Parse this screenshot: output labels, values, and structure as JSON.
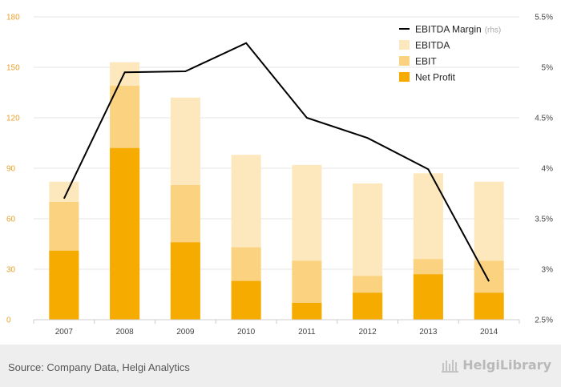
{
  "chart_data": {
    "type": "bar",
    "categories": [
      "2007",
      "2008",
      "2009",
      "2010",
      "2011",
      "2012",
      "2013",
      "2014"
    ],
    "series": [
      {
        "name": "EBITDA",
        "type": "bar",
        "color": "#fde8bd",
        "values": [
          82,
          153,
          132,
          98,
          92,
          81,
          87,
          82
        ]
      },
      {
        "name": "EBIT",
        "type": "bar",
        "color": "#fbd27f",
        "values": [
          70,
          139,
          80,
          43,
          35,
          26,
          36,
          35
        ]
      },
      {
        "name": "Net Profit",
        "type": "bar",
        "color": "#f6ab00",
        "values": [
          41,
          102,
          46,
          23,
          10,
          16,
          27,
          16
        ]
      },
      {
        "name": "EBITDA Margin",
        "type": "line",
        "axis": "right",
        "color": "#000000",
        "values": [
          3.7,
          4.95,
          4.96,
          5.24,
          4.5,
          4.3,
          3.99,
          2.88
        ]
      }
    ],
    "ylim": [
      0,
      180
    ],
    "yticks": [
      "0",
      "30",
      "60",
      "90",
      "120",
      "150",
      "180"
    ],
    "y2lim": [
      2.5,
      5.5
    ],
    "y2ticks": [
      "2.5%",
      "3%",
      "3.5%",
      "4%",
      "4.5%",
      "5%",
      "5.5%"
    ],
    "y2_note": "(rhs)",
    "legend_position": "top-right",
    "grid": true
  },
  "footer": {
    "source": "Source: Company Data, Helgi Analytics",
    "logo_text": "HelgiLibrary"
  }
}
